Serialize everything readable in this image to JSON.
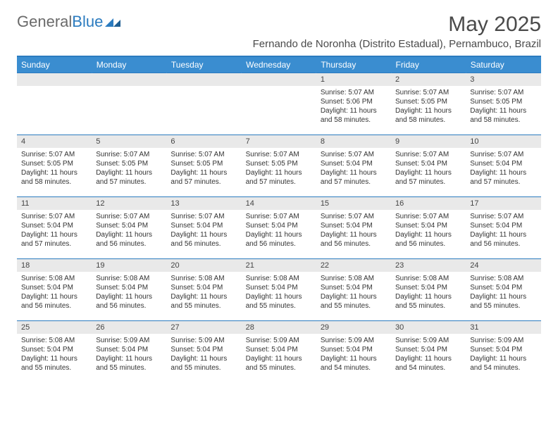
{
  "logo": {
    "text1": "General",
    "text2": "Blue"
  },
  "title": "May 2025",
  "subtitle": "Fernando de Noronha (Distrito Estadual), Pernambuco, Brazil",
  "colors": {
    "header_bg": "#3a8dd0",
    "header_text": "#ffffff",
    "rule": "#2b7bbf",
    "daynum_bg": "#e9e9e9",
    "text": "#333333",
    "logo_gray": "#6a6a6a",
    "logo_blue": "#2b7bbf"
  },
  "weekdays": [
    "Sunday",
    "Monday",
    "Tuesday",
    "Wednesday",
    "Thursday",
    "Friday",
    "Saturday"
  ],
  "labels": {
    "sunrise": "Sunrise:",
    "sunset": "Sunset:",
    "daylight": "Daylight:"
  },
  "weeks": [
    [
      null,
      null,
      null,
      null,
      {
        "d": "1",
        "sr": "5:07 AM",
        "ss": "5:06 PM",
        "dl": "11 hours and 58 minutes."
      },
      {
        "d": "2",
        "sr": "5:07 AM",
        "ss": "5:05 PM",
        "dl": "11 hours and 58 minutes."
      },
      {
        "d": "3",
        "sr": "5:07 AM",
        "ss": "5:05 PM",
        "dl": "11 hours and 58 minutes."
      }
    ],
    [
      {
        "d": "4",
        "sr": "5:07 AM",
        "ss": "5:05 PM",
        "dl": "11 hours and 58 minutes."
      },
      {
        "d": "5",
        "sr": "5:07 AM",
        "ss": "5:05 PM",
        "dl": "11 hours and 57 minutes."
      },
      {
        "d": "6",
        "sr": "5:07 AM",
        "ss": "5:05 PM",
        "dl": "11 hours and 57 minutes."
      },
      {
        "d": "7",
        "sr": "5:07 AM",
        "ss": "5:05 PM",
        "dl": "11 hours and 57 minutes."
      },
      {
        "d": "8",
        "sr": "5:07 AM",
        "ss": "5:04 PM",
        "dl": "11 hours and 57 minutes."
      },
      {
        "d": "9",
        "sr": "5:07 AM",
        "ss": "5:04 PM",
        "dl": "11 hours and 57 minutes."
      },
      {
        "d": "10",
        "sr": "5:07 AM",
        "ss": "5:04 PM",
        "dl": "11 hours and 57 minutes."
      }
    ],
    [
      {
        "d": "11",
        "sr": "5:07 AM",
        "ss": "5:04 PM",
        "dl": "11 hours and 57 minutes."
      },
      {
        "d": "12",
        "sr": "5:07 AM",
        "ss": "5:04 PM",
        "dl": "11 hours and 56 minutes."
      },
      {
        "d": "13",
        "sr": "5:07 AM",
        "ss": "5:04 PM",
        "dl": "11 hours and 56 minutes."
      },
      {
        "d": "14",
        "sr": "5:07 AM",
        "ss": "5:04 PM",
        "dl": "11 hours and 56 minutes."
      },
      {
        "d": "15",
        "sr": "5:07 AM",
        "ss": "5:04 PM",
        "dl": "11 hours and 56 minutes."
      },
      {
        "d": "16",
        "sr": "5:07 AM",
        "ss": "5:04 PM",
        "dl": "11 hours and 56 minutes."
      },
      {
        "d": "17",
        "sr": "5:07 AM",
        "ss": "5:04 PM",
        "dl": "11 hours and 56 minutes."
      }
    ],
    [
      {
        "d": "18",
        "sr": "5:08 AM",
        "ss": "5:04 PM",
        "dl": "11 hours and 56 minutes."
      },
      {
        "d": "19",
        "sr": "5:08 AM",
        "ss": "5:04 PM",
        "dl": "11 hours and 56 minutes."
      },
      {
        "d": "20",
        "sr": "5:08 AM",
        "ss": "5:04 PM",
        "dl": "11 hours and 55 minutes."
      },
      {
        "d": "21",
        "sr": "5:08 AM",
        "ss": "5:04 PM",
        "dl": "11 hours and 55 minutes."
      },
      {
        "d": "22",
        "sr": "5:08 AM",
        "ss": "5:04 PM",
        "dl": "11 hours and 55 minutes."
      },
      {
        "d": "23",
        "sr": "5:08 AM",
        "ss": "5:04 PM",
        "dl": "11 hours and 55 minutes."
      },
      {
        "d": "24",
        "sr": "5:08 AM",
        "ss": "5:04 PM",
        "dl": "11 hours and 55 minutes."
      }
    ],
    [
      {
        "d": "25",
        "sr": "5:08 AM",
        "ss": "5:04 PM",
        "dl": "11 hours and 55 minutes."
      },
      {
        "d": "26",
        "sr": "5:09 AM",
        "ss": "5:04 PM",
        "dl": "11 hours and 55 minutes."
      },
      {
        "d": "27",
        "sr": "5:09 AM",
        "ss": "5:04 PM",
        "dl": "11 hours and 55 minutes."
      },
      {
        "d": "28",
        "sr": "5:09 AM",
        "ss": "5:04 PM",
        "dl": "11 hours and 55 minutes."
      },
      {
        "d": "29",
        "sr": "5:09 AM",
        "ss": "5:04 PM",
        "dl": "11 hours and 54 minutes."
      },
      {
        "d": "30",
        "sr": "5:09 AM",
        "ss": "5:04 PM",
        "dl": "11 hours and 54 minutes."
      },
      {
        "d": "31",
        "sr": "5:09 AM",
        "ss": "5:04 PM",
        "dl": "11 hours and 54 minutes."
      }
    ]
  ]
}
